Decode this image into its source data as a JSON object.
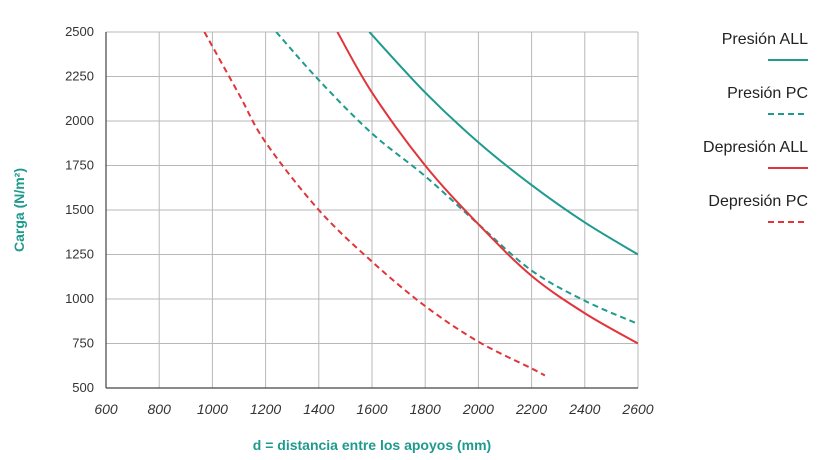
{
  "colors": {
    "teal": "#1e9a8e",
    "red": "#e0353b",
    "grid": "#b8b8b8",
    "axis": "#444444",
    "axis_title": "#1e9a8e"
  },
  "chart_data": {
    "type": "line",
    "xlabel": "d = distancia entre los apoyos (mm)",
    "ylabel": "Carga (N/m²)",
    "xlim": [
      600,
      2600
    ],
    "ylim": [
      500,
      2500
    ],
    "x_ticks": [
      600,
      800,
      1000,
      1200,
      1400,
      1600,
      1800,
      2000,
      2200,
      2400,
      2600
    ],
    "y_ticks": [
      500,
      750,
      1000,
      1250,
      1500,
      1750,
      2000,
      2250,
      2500
    ],
    "grid": true,
    "legend_position": "right",
    "series": [
      {
        "name": "Presión ALL",
        "color": "#1e9a8e",
        "style": "solid",
        "x": [
          1590,
          1800,
          2000,
          2200,
          2400,
          2600
        ],
        "y": [
          2500,
          2160,
          1880,
          1640,
          1430,
          1250
        ]
      },
      {
        "name": "Presión PC",
        "color": "#1e9a8e",
        "style": "dashed",
        "x": [
          1240,
          1400,
          1600,
          1800,
          2000,
          2200,
          2400,
          2600
        ],
        "y": [
          2500,
          2230,
          1930,
          1690,
          1420,
          1160,
          990,
          860
        ]
      },
      {
        "name": "Depresión ALL",
        "color": "#e0353b",
        "style": "solid",
        "x": [
          1470,
          1600,
          1800,
          2000,
          2200,
          2400,
          2600
        ],
        "y": [
          2500,
          2160,
          1750,
          1420,
          1130,
          920,
          750
        ]
      },
      {
        "name": "Depresión PC",
        "color": "#e0353b",
        "style": "dashed",
        "x": [
          970,
          1100,
          1200,
          1400,
          1600,
          1800,
          2000,
          2200,
          2250
        ],
        "y": [
          2500,
          2150,
          1880,
          1500,
          1210,
          960,
          760,
          610,
          570
        ]
      }
    ]
  }
}
